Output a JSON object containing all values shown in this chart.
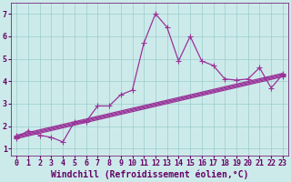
{
  "xlabel": "Windchill (Refroidissement éolien,°C)",
  "bg_color": "#cdeaea",
  "line_color": "#993399",
  "grid_color": "#99cccc",
  "xlim": [
    -0.5,
    23.5
  ],
  "ylim": [
    0.7,
    7.5
  ],
  "xticks": [
    0,
    1,
    2,
    3,
    4,
    5,
    6,
    7,
    8,
    9,
    10,
    11,
    12,
    13,
    14,
    15,
    16,
    17,
    18,
    19,
    20,
    21,
    22,
    23
  ],
  "yticks": [
    1,
    2,
    3,
    4,
    5,
    6,
    7
  ],
  "main_line": {
    "x": [
      0,
      1,
      2,
      3,
      4,
      5,
      6,
      7,
      8,
      9,
      10,
      11,
      12,
      13,
      14,
      15,
      16,
      17,
      18,
      19,
      20,
      21,
      22,
      23
    ],
    "y": [
      1.5,
      1.8,
      1.6,
      1.5,
      1.3,
      2.2,
      2.2,
      2.9,
      2.9,
      3.4,
      3.6,
      5.7,
      7.0,
      6.4,
      4.9,
      6.0,
      4.9,
      4.7,
      4.1,
      4.05,
      4.1,
      4.6,
      3.7,
      4.3
    ]
  },
  "trend_lines": [
    {
      "x": [
        0,
        23
      ],
      "y": [
        1.55,
        4.3
      ]
    },
    {
      "x": [
        0,
        23
      ],
      "y": [
        1.6,
        4.35
      ]
    },
    {
      "x": [
        0,
        23
      ],
      "y": [
        1.5,
        4.25
      ]
    },
    {
      "x": [
        0,
        23
      ],
      "y": [
        1.45,
        4.2
      ]
    }
  ],
  "marker": "+",
  "marker_size": 4,
  "line_width": 0.9,
  "font_color": "#660066",
  "tick_font_size": 6,
  "label_font_size": 7
}
